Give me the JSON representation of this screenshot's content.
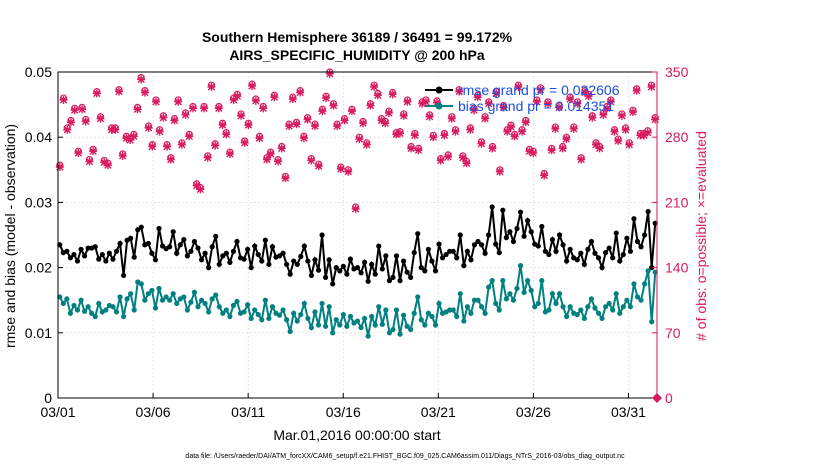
{
  "chart_data": {
    "type": "line",
    "title": "Southern Hemisphere 36189 / 36491 = 99.172%",
    "subtitle": "AIRS_SPECIFIC_HUMIDITY @ 200 hPa",
    "xlabel": "Mar.01,2016 00:00:00 start",
    "ylabel": "rmse and bias (model - observation)",
    "y2label": "# of obs: o=possible; ×=evaluated",
    "xticks": [
      "03/01",
      "03/06",
      "03/11",
      "03/16",
      "03/21",
      "03/26",
      "03/31"
    ],
    "xlim": [
      0,
      31.5
    ],
    "ylim": [
      0,
      0.05
    ],
    "yticks": [
      "0",
      "0.01",
      "0.02",
      "0.03",
      "0.04",
      "0.05"
    ],
    "y2lim": [
      0,
      350
    ],
    "y2ticks": [
      "0",
      "70",
      "140",
      "210",
      "280",
      "350"
    ],
    "grid": true,
    "legend_position": "top-right",
    "footnote": "data file: /Users/raeder/DAI/ATM_forcXX/CAM6_setup/f.e21.FHIST_BGC.f09_025.CAM6assim.011/Diags_NTrS_2016-03/obs_diag_output.nc",
    "colors": {
      "rmse": "#000000",
      "bias": "#008080",
      "obs": "#d81b60",
      "legend_text": "#1a4fe0"
    },
    "series": [
      {
        "name": "rmse grand pr = 0.022606",
        "axis": "left",
        "color": "#000000",
        "values": [
          0.0235,
          0.0223,
          0.0225,
          0.0215,
          0.022,
          0.021,
          0.0228,
          0.0218,
          0.023,
          0.023,
          0.0232,
          0.0213,
          0.022,
          0.021,
          0.0222,
          0.0213,
          0.0225,
          0.0237,
          0.0188,
          0.0242,
          0.0245,
          0.0216,
          0.0258,
          0.0262,
          0.0235,
          0.0237,
          0.0222,
          0.0212,
          0.026,
          0.0233,
          0.0229,
          0.0232,
          0.0255,
          0.0222,
          0.0235,
          0.0243,
          0.0218,
          0.0225,
          0.024,
          0.023,
          0.0212,
          0.0222,
          0.02,
          0.0232,
          0.0248,
          0.0205,
          0.0218,
          0.0222,
          0.0208,
          0.0225,
          0.024,
          0.0215,
          0.0213,
          0.0228,
          0.02,
          0.0233,
          0.022,
          0.021,
          0.0242,
          0.0205,
          0.0232,
          0.0216,
          0.0218,
          0.0222,
          0.0205,
          0.019,
          0.021,
          0.0205,
          0.0217,
          0.0233,
          0.021,
          0.0188,
          0.0212,
          0.0196,
          0.025,
          0.0185,
          0.0212,
          0.0175,
          0.02,
          0.0195,
          0.0202,
          0.019,
          0.0213,
          0.0198,
          0.02,
          0.0192,
          0.0208,
          0.0179,
          0.0205,
          0.019,
          0.0233,
          0.0198,
          0.0218,
          0.018,
          0.0185,
          0.0218,
          0.018,
          0.021,
          0.0193,
          0.0185,
          0.0223,
          0.0252,
          0.02,
          0.0195,
          0.0228,
          0.021,
          0.0195,
          0.0236,
          0.0215,
          0.022,
          0.0225,
          0.0225,
          0.0215,
          0.025,
          0.0203,
          0.0225,
          0.0212,
          0.0235,
          0.024,
          0.0235,
          0.0222,
          0.025,
          0.0293,
          0.0236,
          0.0223,
          0.0288,
          0.0246,
          0.0255,
          0.024,
          0.026,
          0.0285,
          0.0248,
          0.0272,
          0.0255,
          0.0236,
          0.0233,
          0.0263,
          0.0225,
          0.022,
          0.0243,
          0.0225,
          0.025,
          0.0235,
          0.021,
          0.0228,
          0.0215,
          0.0212,
          0.0222,
          0.0205,
          0.0228,
          0.024,
          0.0222,
          0.0215,
          0.02,
          0.0223,
          0.023,
          0.0215,
          0.0253,
          0.021,
          0.022,
          0.0245,
          0.0225,
          0.0275,
          0.024,
          0.0232,
          0.025,
          0.0286,
          0.02,
          0.0268
        ]
      },
      {
        "name": "bias grand pr = 0.014351",
        "axis": "left",
        "color": "#008080",
        "values": [
          0.0155,
          0.0145,
          0.0152,
          0.013,
          0.0142,
          0.0135,
          0.015,
          0.0133,
          0.014,
          0.013,
          0.0125,
          0.0145,
          0.0132,
          0.0135,
          0.0142,
          0.014,
          0.0132,
          0.0155,
          0.0125,
          0.0152,
          0.016,
          0.0135,
          0.0178,
          0.0175,
          0.015,
          0.016,
          0.0165,
          0.0138,
          0.0168,
          0.015,
          0.0155,
          0.015,
          0.016,
          0.0145,
          0.0152,
          0.0155,
          0.0135,
          0.0147,
          0.0162,
          0.014,
          0.015,
          0.0145,
          0.0132,
          0.0152,
          0.0158,
          0.014,
          0.013,
          0.0135,
          0.0125,
          0.0142,
          0.0148,
          0.013,
          0.0132,
          0.0143,
          0.0122,
          0.0135,
          0.0128,
          0.012,
          0.015,
          0.0122,
          0.014,
          0.013,
          0.0127,
          0.0135,
          0.012,
          0.0102,
          0.013,
          0.0118,
          0.0128,
          0.0145,
          0.0122,
          0.0108,
          0.0132,
          0.0112,
          0.0145,
          0.011,
          0.014,
          0.01,
          0.012,
          0.0112,
          0.0128,
          0.011,
          0.0125,
          0.0115,
          0.0118,
          0.0108,
          0.0122,
          0.0095,
          0.0125,
          0.0112,
          0.014,
          0.0113,
          0.0135,
          0.01,
          0.0105,
          0.0135,
          0.0098,
          0.0127,
          0.011,
          0.0105,
          0.013,
          0.0155,
          0.012,
          0.0112,
          0.013,
          0.0125,
          0.0112,
          0.0145,
          0.013,
          0.0132,
          0.0135,
          0.0135,
          0.0125,
          0.016,
          0.0118,
          0.014,
          0.013,
          0.015,
          0.015,
          0.014,
          0.013,
          0.017,
          0.018,
          0.0145,
          0.0135,
          0.018,
          0.0152,
          0.016,
          0.015,
          0.0168,
          0.0203,
          0.0162,
          0.018,
          0.0165,
          0.014,
          0.0145,
          0.018,
          0.0132,
          0.0135,
          0.016,
          0.0145,
          0.016,
          0.014,
          0.0125,
          0.014,
          0.013,
          0.0128,
          0.0135,
          0.0122,
          0.014,
          0.0152,
          0.0138,
          0.013,
          0.0122,
          0.014,
          0.0145,
          0.0135,
          0.016,
          0.013,
          0.014,
          0.015,
          0.014,
          0.0175,
          0.0155,
          0.015,
          0.0175,
          0.0195,
          0.0117,
          0.0193
        ]
      },
      {
        "name": "# of obs possible",
        "axis": "right",
        "marker": "o",
        "color": "#d81b60",
        "values": [
          250,
          322,
          290,
          298,
          311,
          265,
          312,
          299,
          256,
          267,
          329,
          302,
          255,
          252,
          290,
          290,
          331,
          262,
          281,
          279,
          283,
          312,
          344,
          330,
          292,
          272,
          320,
          288,
          303,
          272,
          258,
          300,
          320,
          274,
          306,
          283,
          313,
          230,
          226,
          313,
          260,
          336,
          273,
          313,
          295,
          285,
          264,
          322,
          326,
          305,
          276,
          295,
          337,
          321,
          281,
          313,
          258,
          264,
          325,
          256,
          270,
          238,
          294,
          323,
          296,
          330,
          281,
          301,
          257,
          294,
          251,
          310,
          324,
          350,
          316,
          294,
          248,
          300,
          245,
          310,
          205,
          280,
          297,
          274,
          316,
          336,
          327,
          300,
          297,
          308,
          328,
          285,
          286,
          305,
          320,
          270,
          284,
          268,
          318,
          320,
          304,
          282,
          319,
          257,
          284,
          261,
          302,
          288,
          331,
          260,
          254,
          290,
          311,
          325,
          275,
          302,
          318,
          270,
          329,
          245,
          314,
          288,
          293,
          283,
          336,
          288,
          298,
          267,
          265,
          320,
          333,
          241,
          318,
          268,
          291,
          314,
          270,
          280,
          323,
          291,
          318,
          258,
          330,
          326,
          303,
          274,
          270,
          306,
          313,
          320,
          288,
          278,
          305,
          290,
          274,
          309,
          332,
          284,
          284,
          287,
          336,
          301
        ]
      },
      {
        "name": "# of obs evaluated",
        "axis": "right",
        "marker": "x",
        "color": "#d81b60",
        "values": [
          248,
          320,
          288,
          296,
          309,
          263,
          310,
          297,
          254,
          265,
          327,
          300,
          253,
          250,
          288,
          288,
          329,
          260,
          279,
          277,
          281,
          310,
          342,
          328,
          290,
          270,
          318,
          286,
          301,
          270,
          256,
          298,
          318,
          272,
          304,
          281,
          311,
          228,
          224,
          311,
          258,
          334,
          271,
          311,
          293,
          283,
          262,
          320,
          324,
          303,
          274,
          293,
          335,
          319,
          279,
          311,
          256,
          262,
          323,
          254,
          268,
          236,
          292,
          321,
          294,
          328,
          279,
          299,
          255,
          292,
          249,
          308,
          322,
          348,
          314,
          292,
          246,
          298,
          243,
          308,
          203,
          278,
          295,
          272,
          314,
          334,
          325,
          298,
          295,
          306,
          326,
          283,
          284,
          303,
          318,
          268,
          282,
          266,
          316,
          318,
          302,
          280,
          317,
          255,
          282,
          259,
          300,
          286,
          329,
          258,
          252,
          288,
          309,
          323,
          273,
          300,
          316,
          268,
          327,
          243,
          312,
          286,
          291,
          281,
          334,
          286,
          296,
          265,
          263,
          318,
          331,
          239,
          316,
          266,
          289,
          312,
          268,
          278,
          321,
          289,
          316,
          256,
          328,
          324,
          301,
          272,
          268,
          304,
          311,
          318,
          286,
          276,
          303,
          288,
          272,
          307,
          330,
          282,
          282,
          285,
          334,
          299
        ]
      }
    ]
  }
}
